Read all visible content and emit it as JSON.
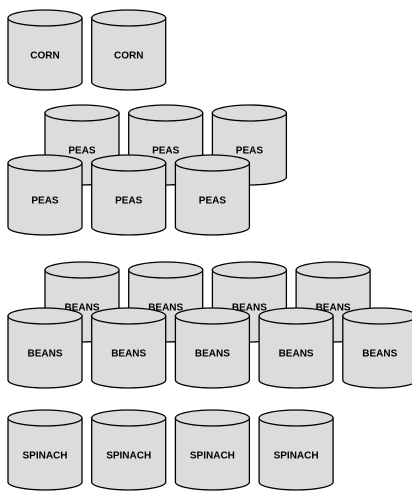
{
  "groups": [
    {
      "rows": [
        [
          "CORN",
          "CORN"
        ]
      ]
    },
    {
      "rows": [
        [
          "PEAS",
          "PEAS",
          "PEAS"
        ],
        [
          "PEAS",
          "PEAS",
          "PEAS"
        ]
      ]
    },
    {
      "rows": [
        [
          "BEANS",
          "BEANS",
          "BEANS",
          "BEANS"
        ],
        [
          "BEANS",
          "BEANS",
          "BEANS",
          "BEANS",
          "BEANS"
        ]
      ]
    },
    {
      "rows": [
        [
          "SPINACH",
          "SPINACH",
          "SPINACH",
          "SPINACH"
        ]
      ]
    }
  ]
}
